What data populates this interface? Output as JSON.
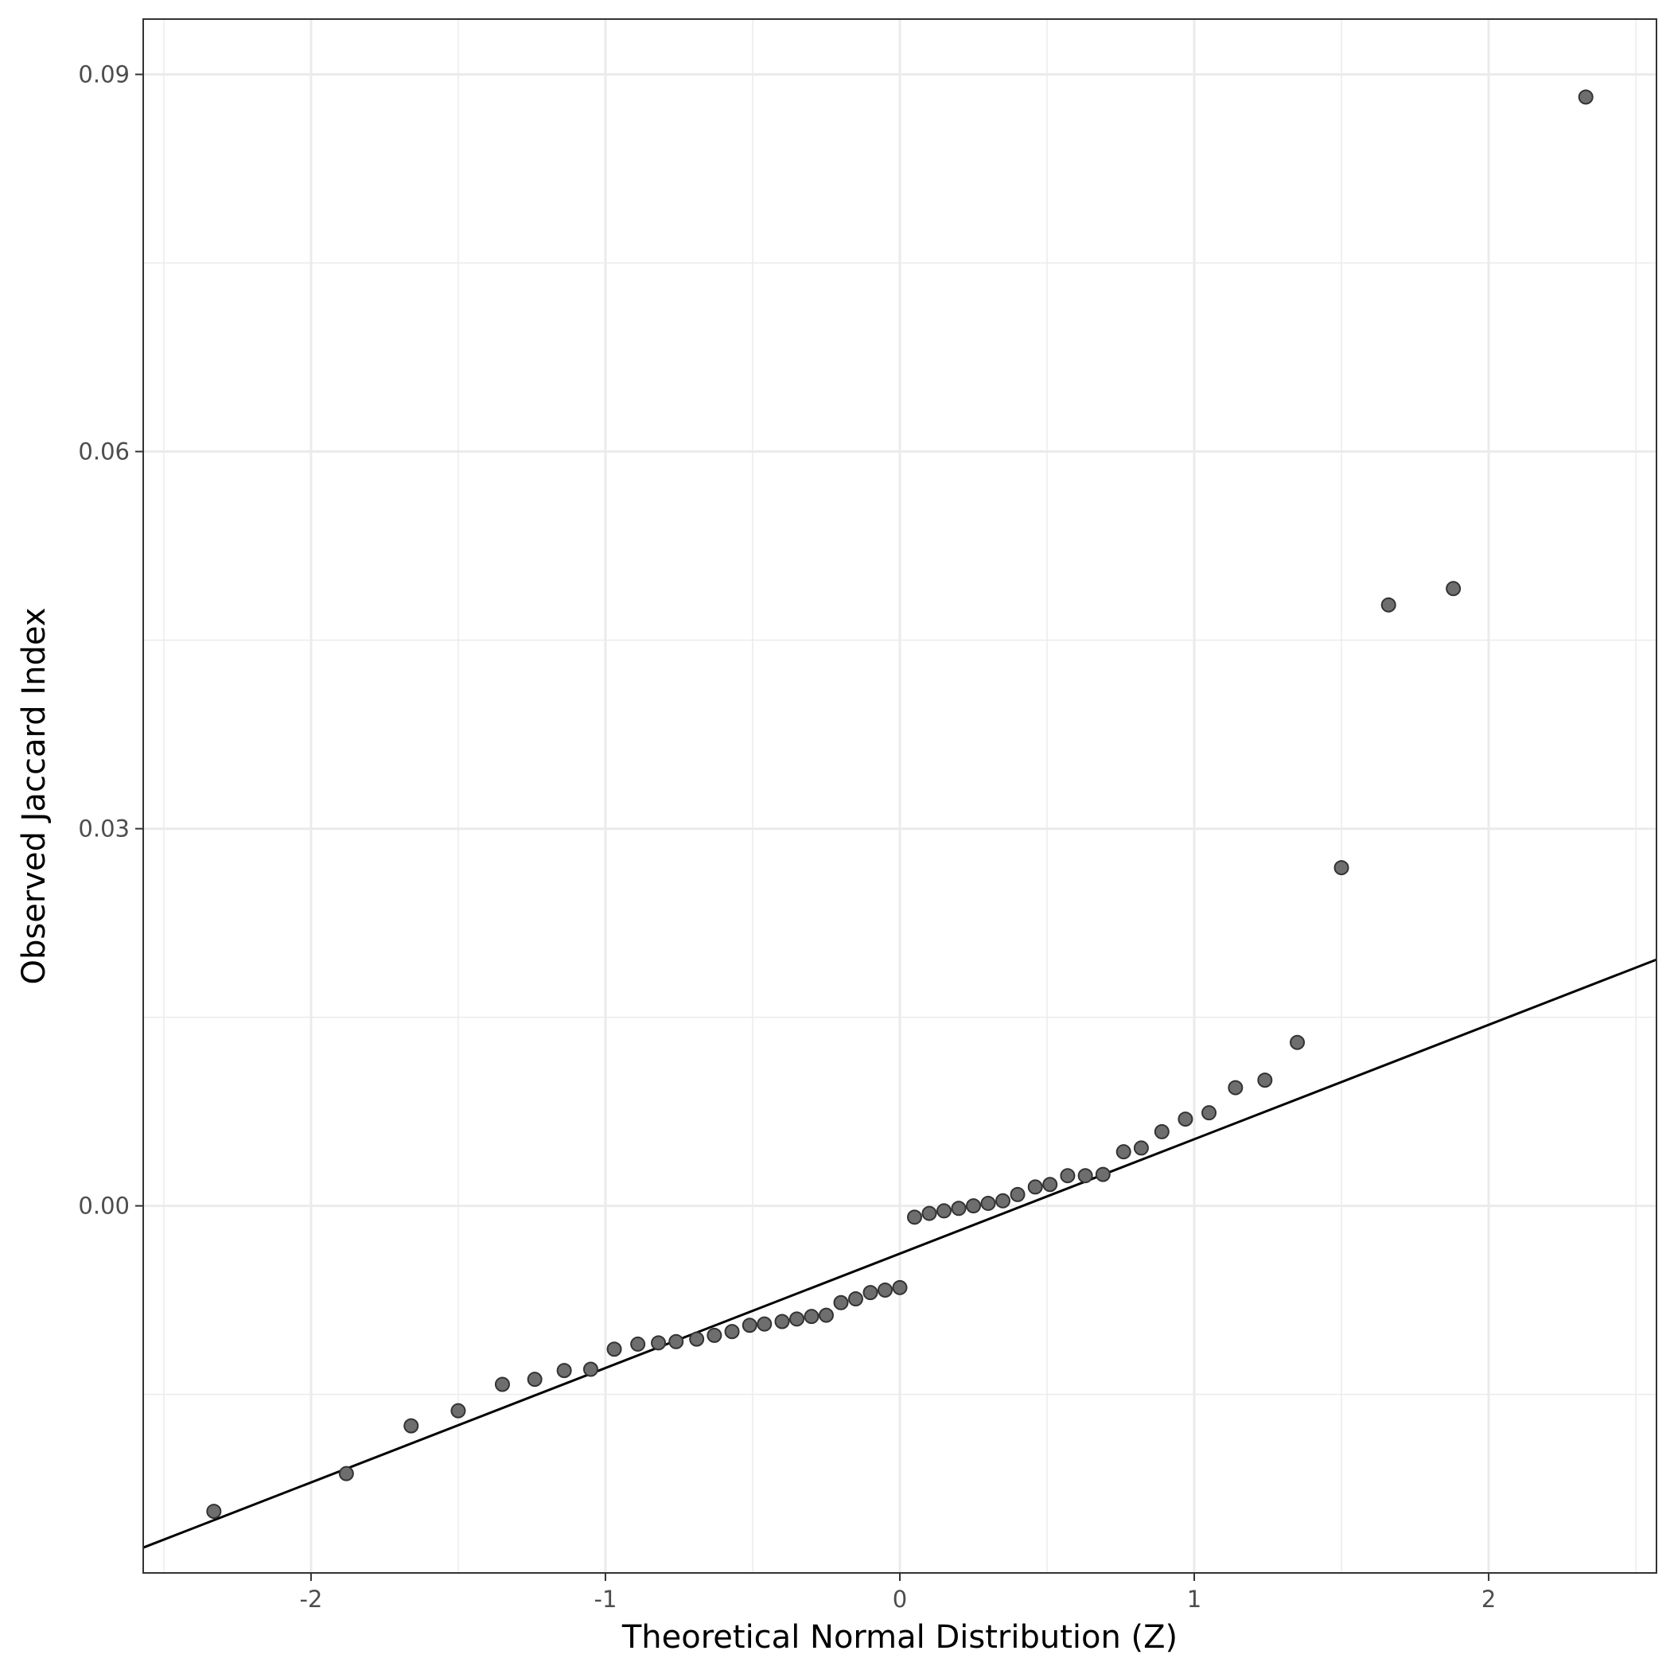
{
  "chart_data": {
    "type": "scatter",
    "title": "",
    "xlabel": "Theoretical Normal Distribution (Z)",
    "ylabel": "Observed Jaccard Index",
    "xlim": [
      -2.57,
      2.57
    ],
    "ylim": [
      -0.0292,
      0.0944
    ],
    "x_ticks": [
      -2,
      -1,
      0,
      1,
      2
    ],
    "x_tick_labels": [
      "-2",
      "-1",
      "0",
      "1",
      "2"
    ],
    "y_ticks": [
      0.0,
      0.03,
      0.06,
      0.09
    ],
    "y_tick_labels": [
      "0.00",
      "0.03",
      "0.06",
      "0.09"
    ],
    "x_minor_ticks": [
      -2.5,
      -1.5,
      -0.5,
      0.5,
      1.5,
      2.5
    ],
    "y_minor_ticks": [
      -0.015,
      0.015,
      0.045,
      0.075
    ],
    "grid": true,
    "legend": "none",
    "point_color": "#6e6e6e",
    "point_edge_color": "#333333",
    "line_color": "#000000",
    "series": [
      {
        "x": [
          -2.33,
          -1.88,
          -1.66,
          -1.5,
          -1.35,
          -1.24,
          -1.14,
          -1.05,
          -0.97,
          -0.89,
          -0.82,
          -0.76,
          -0.69,
          -0.63,
          -0.57,
          -0.51,
          -0.46,
          -0.4,
          -0.35,
          -0.3,
          -0.25,
          -0.2,
          -0.15,
          -0.1,
          -0.05,
          0.0,
          0.05,
          0.1,
          0.15,
          0.2,
          0.25,
          0.3,
          0.35,
          0.4,
          0.46,
          0.51,
          0.57,
          0.63,
          0.69,
          0.76,
          0.82,
          0.89,
          0.97,
          1.05,
          1.14,
          1.24,
          1.35,
          1.5,
          1.66,
          1.88,
          2.33
        ],
        "y": [
          -0.0243,
          -0.0213,
          -0.0175,
          -0.0163,
          -0.0142,
          -0.0138,
          -0.0131,
          -0.013,
          -0.0114,
          -0.011,
          -0.0109,
          -0.0108,
          -0.0106,
          -0.0103,
          -0.01,
          -0.0095,
          -0.0094,
          -0.0092,
          -0.009,
          -0.0088,
          -0.0087,
          -0.0077,
          -0.0074,
          -0.0069,
          -0.0067,
          -0.0065,
          -0.0009,
          -0.0006,
          -0.0004,
          -0.0002,
          0.0,
          0.0002,
          0.0004,
          0.0009,
          0.0015,
          0.0017,
          0.0024,
          0.0024,
          0.0025,
          0.0043,
          0.0046,
          0.0059,
          0.0069,
          0.0074,
          0.0094,
          0.01,
          0.013,
          0.0269,
          0.0478,
          0.0491,
          0.0882
        ]
      }
    ],
    "reference_line": {
      "intercept": -0.0038,
      "slope": 0.0091
    }
  }
}
